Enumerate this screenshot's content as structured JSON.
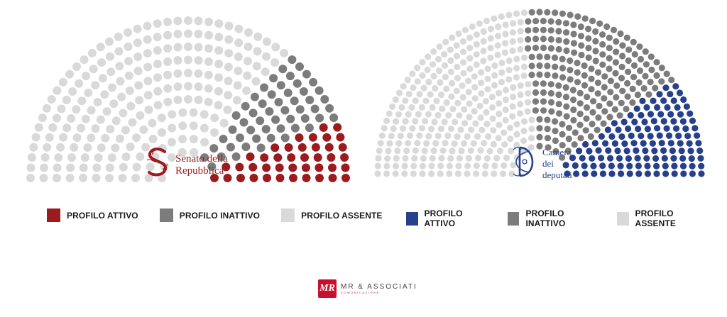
{
  "chart_data": [
    {
      "type": "parliament",
      "chamber": "Senato della Repubblica",
      "title_lines": [
        "Senato della",
        "Repubblica"
      ],
      "categories": [
        "PROFILO ATTIVO",
        "PROFILO INATTIVO",
        "PROFILO ASSENTE"
      ],
      "values": [
        41,
        54,
        220
      ],
      "colors": [
        "#9b1b1e",
        "#7c7c7c",
        "#d9d9d9"
      ],
      "logo_icon": "senato-emblem-icon",
      "legend_placement": "bottom"
    },
    {
      "type": "parliament",
      "chamber": "Camera dei deputati",
      "title_lines": [
        "Camera",
        "dei",
        "deputati"
      ],
      "categories": [
        "PROFILO ATTIVO",
        "PROFILO INATTIVO",
        "PROFILO ASSENTE"
      ],
      "values": [
        127,
        208,
        295
      ],
      "colors": [
        "#27408b",
        "#7c7c7c",
        "#d9d9d9"
      ],
      "logo_icon": "camera-emblem-icon",
      "legend_placement": "bottom"
    }
  ],
  "footer": {
    "brand_mark": "MR",
    "brand_name": "MR & ASSOCIATI",
    "brand_sub": "COMUNICAZIONE",
    "icon": "mr-logo-icon"
  }
}
